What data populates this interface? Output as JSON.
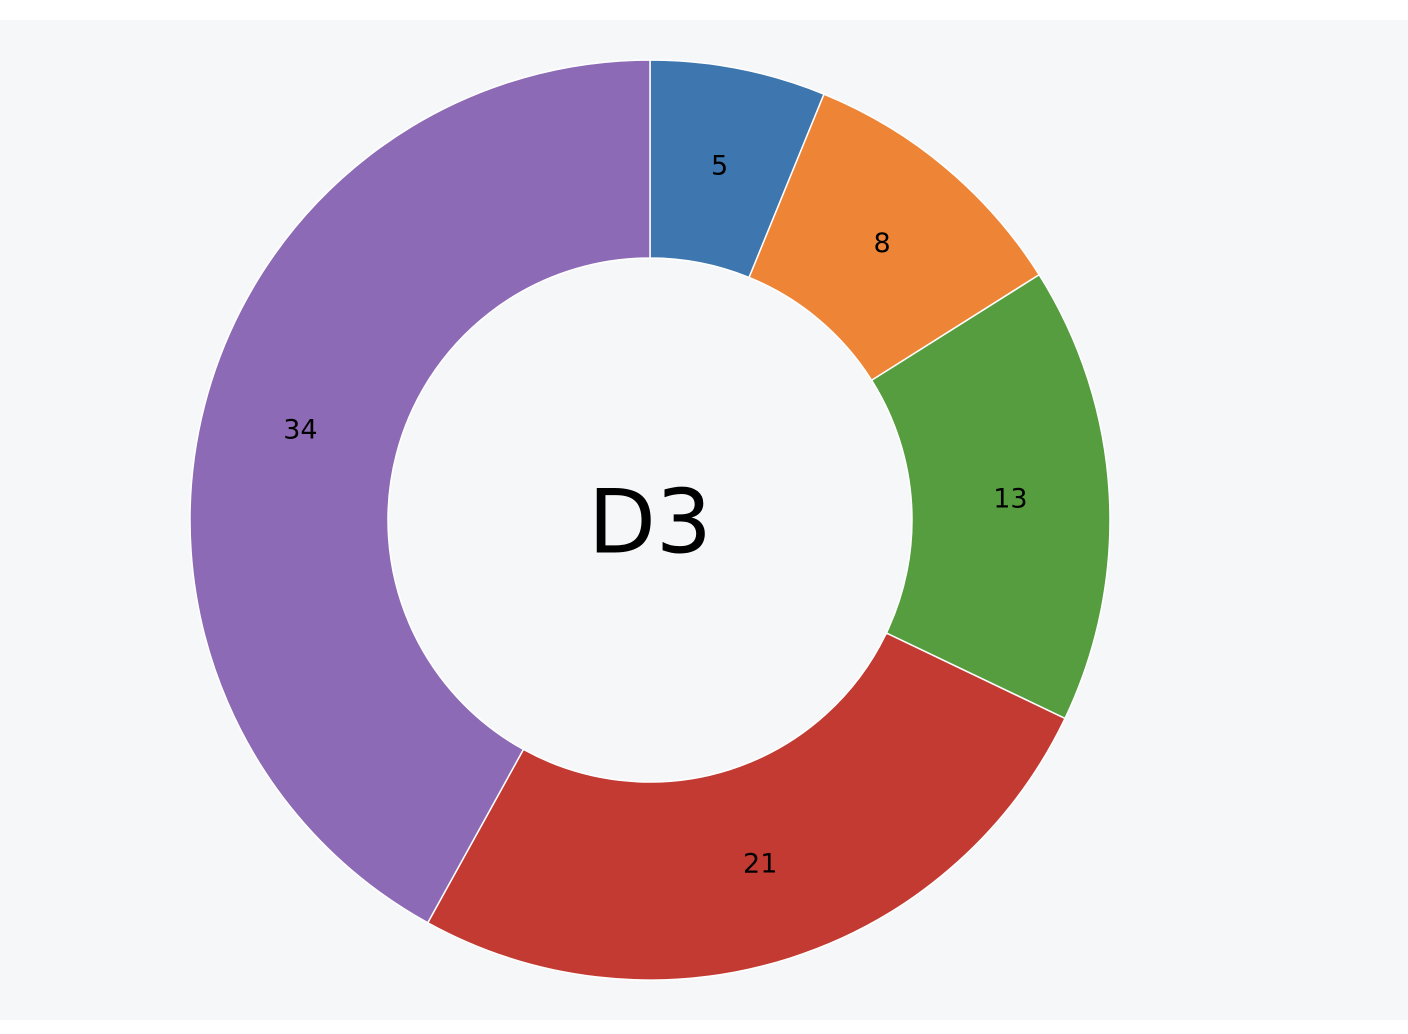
{
  "chart_data": {
    "type": "pie",
    "variant": "donut",
    "center_label": "D3",
    "slices": [
      {
        "label": "5",
        "value": 5,
        "color": "#3e76af"
      },
      {
        "label": "8",
        "value": 8,
        "color": "#ee8536"
      },
      {
        "label": "13",
        "value": 13,
        "color": "#559d3e"
      },
      {
        "label": "21",
        "value": 21,
        "color": "#c23a32"
      },
      {
        "label": "34",
        "value": 34,
        "color": "#8d6ab5"
      }
    ]
  }
}
